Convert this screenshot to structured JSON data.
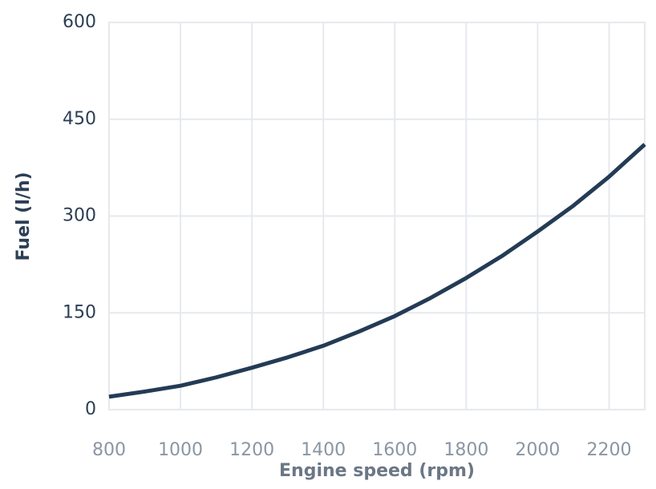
{
  "chart_data": {
    "type": "line",
    "x_label": "Engine speed (rpm)",
    "y_label": "Fuel (l/h)",
    "x": [
      800,
      900,
      1000,
      1100,
      1200,
      1300,
      1400,
      1500,
      1600,
      1700,
      1800,
      1900,
      2000,
      2100,
      2200,
      2300
    ],
    "series": [
      {
        "name": "Fuel",
        "color": "#243b55",
        "values": [
          20,
          28,
          37,
          50,
          65,
          81,
          99,
          121,
          145,
          173,
          204,
          238,
          276,
          316,
          361,
          411
        ]
      }
    ],
    "xlim": [
      800,
      2300
    ],
    "xticks": [
      800,
      1000,
      1200,
      1400,
      1600,
      1800,
      2000,
      2200
    ],
    "ylim": [
      0,
      600
    ],
    "yticks": [
      0,
      150,
      300,
      450,
      600
    ],
    "grid": true
  }
}
